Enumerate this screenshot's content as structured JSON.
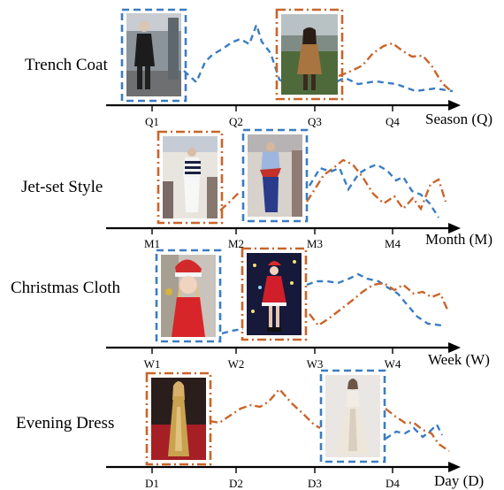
{
  "palette": {
    "blue": "#3b7cc2",
    "orange": "#c9652a"
  },
  "rows": [
    {
      "label": "Trench Coat",
      "axis_title": "Season (Q)",
      "ticks": [
        "Q1",
        "Q2",
        "Q3",
        "Q4"
      ],
      "photos": [
        {
          "border": "blue",
          "subject": "woman in black coat on city street"
        },
        {
          "border": "orange",
          "subject": "woman in camel trench coat outdoors"
        }
      ]
    },
    {
      "label": "Jet-set Style",
      "axis_title": "Month (M)",
      "ticks": [
        "M1",
        "M2",
        "M3",
        "M4"
      ],
      "photos": [
        {
          "border": "orange",
          "subject": "runway model in striped top and white pants"
        },
        {
          "border": "blue",
          "subject": "runway model in blue outfit with red scarf"
        }
      ]
    },
    {
      "label": "Christmas Cloth",
      "axis_title": "Week (W)",
      "ticks": [
        "W1",
        "W2",
        "W3",
        "W4"
      ],
      "photos": [
        {
          "border": "blue",
          "subject": "child in red santa hat and red sweater"
        },
        {
          "border": "orange",
          "subject": "woman in santa dress at night"
        }
      ]
    },
    {
      "label": "Evening Dress",
      "axis_title": "Day (D)",
      "ticks": [
        "D1",
        "D2",
        "D3",
        "D4"
      ],
      "photos": [
        {
          "border": "orange",
          "subject": "woman in gold evening gown on red carpet"
        },
        {
          "border": "blue",
          "subject": "model in white evening gown"
        }
      ]
    }
  ]
}
